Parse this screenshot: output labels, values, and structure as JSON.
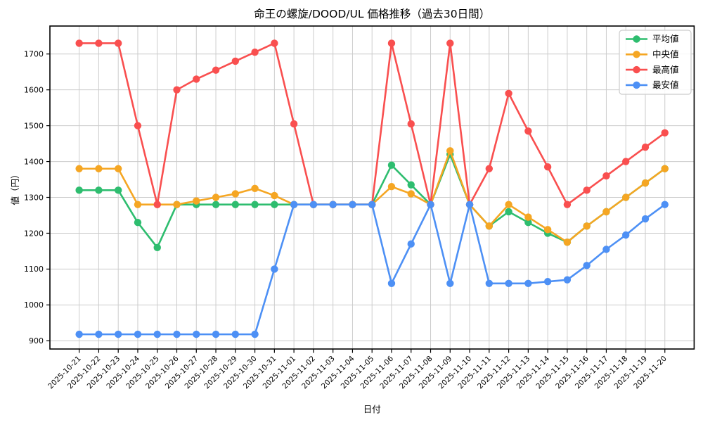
{
  "chart_data": {
    "type": "line",
    "title": "命王の螺旋/DOOD/UL 価格推移（過去30日間）",
    "xlabel": "日付",
    "ylabel": "値（円）",
    "ylim": [
      877,
      1778
    ],
    "yticks": [
      900,
      1000,
      1100,
      1200,
      1300,
      1400,
      1500,
      1600,
      1700
    ],
    "grid": true,
    "legend_position": "upper right",
    "categories": [
      "2025-10-21",
      "2025-10-22",
      "2025-10-23",
      "2025-10-24",
      "2025-10-25",
      "2025-10-26",
      "2025-10-27",
      "2025-10-28",
      "2025-10-29",
      "2025-10-30",
      "2025-10-31",
      "2025-11-01",
      "2025-11-02",
      "2025-11-03",
      "2025-11-04",
      "2025-11-05",
      "2025-11-06",
      "2025-11-07",
      "2025-11-08",
      "2025-11-09",
      "2025-11-10",
      "2025-11-11",
      "2025-11-12",
      "2025-11-13",
      "2025-11-14",
      "2025-11-15",
      "2025-11-16",
      "2025-11-17",
      "2025-11-18",
      "2025-11-19",
      "2025-11-20"
    ],
    "series": [
      {
        "name": "平均値",
        "color": "#2ebd6f",
        "values": [
          1320,
          1320,
          1320,
          1230,
          1160,
          1280,
          1280,
          1280,
          1280,
          1280,
          1280,
          1280,
          1280,
          1280,
          1280,
          1280,
          1390,
          1335,
          1280,
          1420,
          1280,
          1220,
          1260,
          1230,
          1200,
          1175,
          1220,
          1260,
          1300,
          1340,
          1380
        ]
      },
      {
        "name": "中央値",
        "color": "#f5a623",
        "values": [
          1380,
          1380,
          1380,
          1280,
          1280,
          1280,
          1290,
          1300,
          1310,
          1325,
          1305,
          1280,
          1280,
          1280,
          1280,
          1280,
          1330,
          1310,
          1280,
          1430,
          1280,
          1220,
          1280,
          1245,
          1210,
          1175,
          1220,
          1260,
          1300,
          1340,
          1380
        ]
      },
      {
        "name": "最高値",
        "color": "#f94f4f",
        "values": [
          1730,
          1730,
          1730,
          1500,
          1280,
          1600,
          1630,
          1655,
          1680,
          1705,
          1730,
          1505,
          1280,
          1280,
          1280,
          1280,
          1730,
          1505,
          1280,
          1730,
          1280,
          1380,
          1590,
          1485,
          1385,
          1280,
          1320,
          1360,
          1400,
          1440,
          1480
        ]
      },
      {
        "name": "最安値",
        "color": "#4d90f5",
        "values": [
          918,
          918,
          918,
          918,
          918,
          918,
          918,
          918,
          918,
          918,
          1100,
          1280,
          1280,
          1280,
          1280,
          1280,
          1060,
          1170,
          1280,
          1060,
          1280,
          1060,
          1060,
          1060,
          1065,
          1070,
          1110,
          1155,
          1195,
          1240,
          1280
        ]
      }
    ],
    "style": {
      "grid_color": "#cccccc",
      "spine_color": "#000000",
      "background": "#ffffff",
      "legend_border": "#cccccc"
    }
  }
}
